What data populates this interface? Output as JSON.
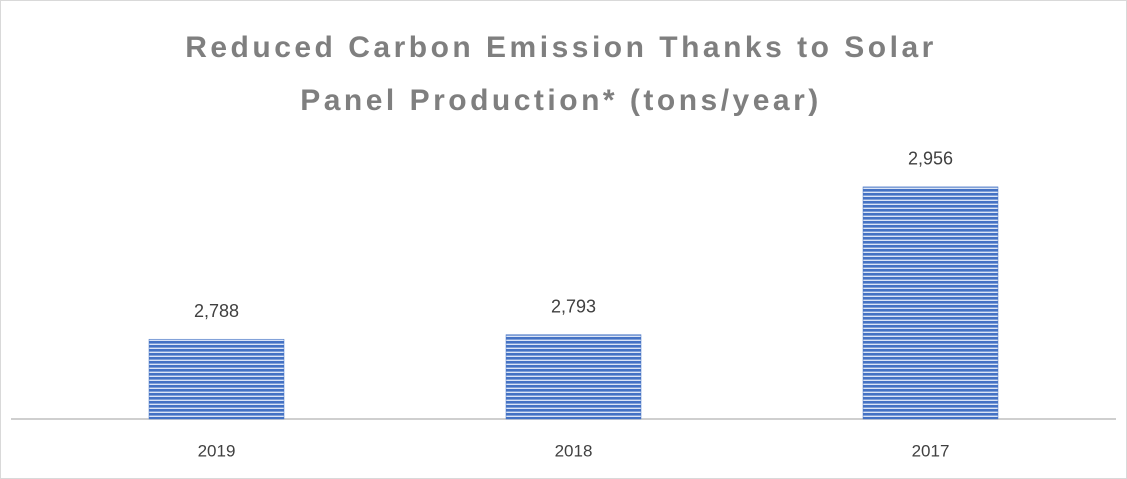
{
  "chart_data": {
    "type": "bar",
    "title": "Reduced Carbon Emission Thanks to Solar Panel Production* (tons/year)",
    "categories": [
      "2019",
      "2018",
      "2017"
    ],
    "values": [
      2788,
      2793,
      2956
    ],
    "value_labels": [
      "2,788",
      "2,793",
      "2,956"
    ],
    "color": "#4472c4",
    "ylim": [
      2700,
      3000
    ]
  }
}
